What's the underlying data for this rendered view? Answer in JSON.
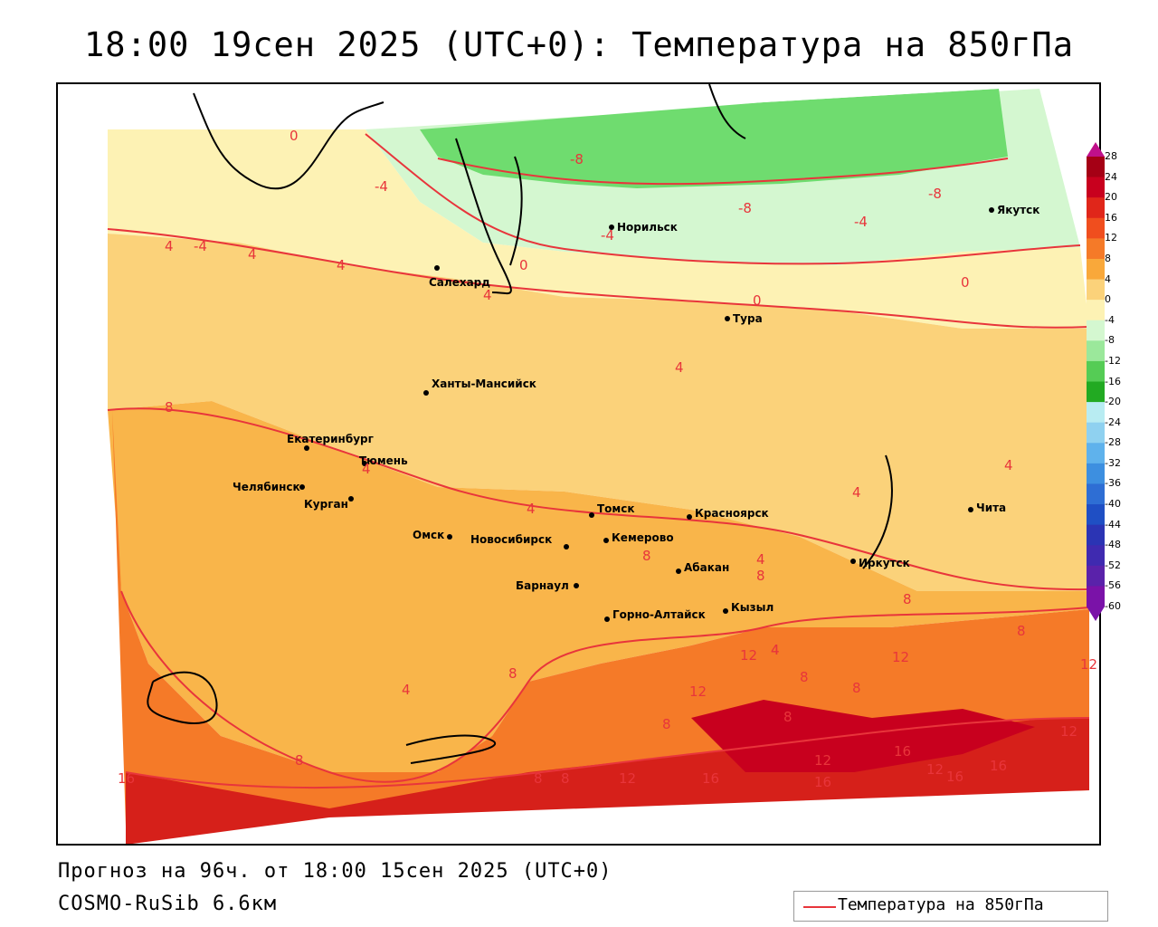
{
  "title": "18:00 19сен 2025 (UTC+0): Температура на 850гПа",
  "footer": {
    "forecast": "Прогноз на 96ч. от 18:00 15сен 2025 (UTC+0)",
    "model": "COSMO-RuSib 6.6км"
  },
  "legend": {
    "label": "Температура на 850гПа",
    "color": "#e8353b"
  },
  "colorbar": {
    "labels": [
      "28",
      "24",
      "20",
      "16",
      "12",
      "8",
      "4",
      "0",
      "-4",
      "-8",
      "-12",
      "-16",
      "-20",
      "-24",
      "-28",
      "-32",
      "-36",
      "-40",
      "-44",
      "-48",
      "-52",
      "-56",
      "-60"
    ],
    "colors": [
      "#a50015",
      "#c8001e",
      "#e0261a",
      "#f04e1e",
      "#f57a28",
      "#f9a83a",
      "#fbd27a",
      "#fdf2b4",
      "#d4f7d0",
      "#9be89b",
      "#55cc55",
      "#22aa22",
      "#b8ecf2",
      "#8fd1f0",
      "#5fb2ec",
      "#3d8fe0",
      "#2e6ed4",
      "#1f4fc4",
      "#2b34b4",
      "#3f2ab0",
      "#5a22aa",
      "#7a12a8"
    ]
  },
  "cities": [
    {
      "name": "Якутск"
    },
    {
      "name": "Норильск"
    },
    {
      "name": "Салехард"
    },
    {
      "name": "Тура"
    },
    {
      "name": "Ханты-Мансийск"
    },
    {
      "name": "Екатеринбург"
    },
    {
      "name": "Тюмень"
    },
    {
      "name": "Челябинск"
    },
    {
      "name": "Курган"
    },
    {
      "name": "Омск"
    },
    {
      "name": "Новосибирск"
    },
    {
      "name": "Томск"
    },
    {
      "name": "Кемерово"
    },
    {
      "name": "Красноярск"
    },
    {
      "name": "Барнаул"
    },
    {
      "name": "Абакан"
    },
    {
      "name": "Кызыл"
    },
    {
      "name": "Горно-Алтайск"
    },
    {
      "name": "Иркутск"
    },
    {
      "name": "Чита"
    }
  ],
  "isolines": [
    "0",
    "-4",
    "-8",
    "-4",
    "-8",
    "-4",
    "-8",
    "-4",
    "0",
    "4",
    "4",
    "4",
    "4",
    "4",
    "0",
    "0",
    "4",
    "4",
    "8",
    "4",
    "4",
    "4",
    "8",
    "8",
    "4",
    "8",
    "8",
    "12",
    "4",
    "12",
    "12",
    "8",
    "8",
    "8",
    "8",
    "8",
    "12",
    "16",
    "12",
    "16",
    "12",
    "16",
    "12",
    "16",
    "16",
    "8",
    "8",
    "12",
    "16",
    "4",
    "8"
  ]
}
